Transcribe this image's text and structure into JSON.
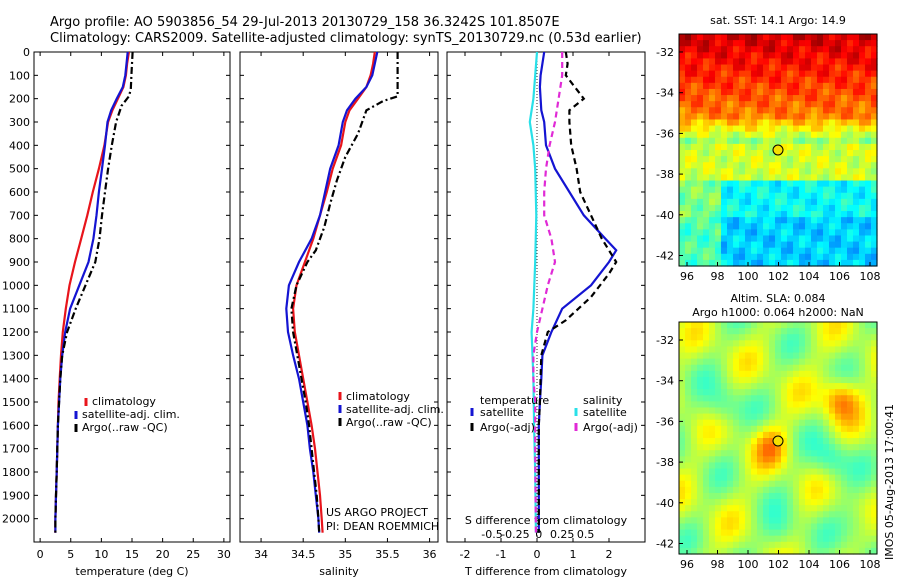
{
  "header": {
    "line1": "Argo profile: AO 5903856_54 29-Jul-2013 20130729_158 36.3242S 101.8507E",
    "line2": "Climatology: CARS2009. Satellite-adjusted climatology: synTS_20130729.nc (0.53d earlier)"
  },
  "side_text": "IMOS 05-Aug-2013 17:00:41",
  "colors": {
    "red": "#e8141b",
    "blue": "#1414d2",
    "black": "#000000",
    "cyan": "#29e0e8",
    "magenta": "#e02ad6",
    "marker": "#f5e000"
  },
  "chart_data": [
    {
      "type": "line",
      "panel": "temperature",
      "xlabel": "temperature (deg C)",
      "ylabel": "",
      "xlim": [
        -1,
        31
      ],
      "ylim": [
        0,
        2100
      ],
      "xticks": [
        0,
        5,
        10,
        15,
        20,
        25,
        30
      ],
      "yticks": [
        0,
        100,
        200,
        300,
        400,
        500,
        600,
        700,
        800,
        900,
        1000,
        1100,
        1200,
        1300,
        1400,
        1500,
        1600,
        1700,
        1800,
        1900,
        2000
      ],
      "series": [
        {
          "name": "climatology",
          "color": "red",
          "style": "solid",
          "points": [
            [
              14.5,
              0
            ],
            [
              14.2,
              50
            ],
            [
              14,
              100
            ],
            [
              13.6,
              150
            ],
            [
              12.7,
              200
            ],
            [
              11.8,
              250
            ],
            [
              11.1,
              300
            ],
            [
              10.5,
              400
            ],
            [
              9.6,
              500
            ],
            [
              8.6,
              600
            ],
            [
              7.7,
              700
            ],
            [
              6.7,
              800
            ],
            [
              5.7,
              900
            ],
            [
              4.8,
              1000
            ],
            [
              4.2,
              1100
            ],
            [
              3.7,
              1200
            ],
            [
              3.4,
              1300
            ],
            [
              3.2,
              1400
            ],
            [
              3.0,
              1500
            ],
            [
              2.9,
              1600
            ],
            [
              2.8,
              1700
            ],
            [
              2.7,
              1800
            ],
            [
              2.6,
              1900
            ],
            [
              2.5,
              2000
            ],
            [
              2.5,
              2060
            ]
          ]
        },
        {
          "name": "satellite-adj. clim.",
          "color": "blue",
          "style": "solid",
          "points": [
            [
              14.3,
              0
            ],
            [
              14.1,
              50
            ],
            [
              13.9,
              100
            ],
            [
              13.5,
              150
            ],
            [
              12.5,
              200
            ],
            [
              11.6,
              250
            ],
            [
              11,
              300
            ],
            [
              10.6,
              400
            ],
            [
              10.1,
              500
            ],
            [
              9.6,
              600
            ],
            [
              9.2,
              700
            ],
            [
              8.7,
              800
            ],
            [
              7.9,
              900
            ],
            [
              6.4,
              1000
            ],
            [
              4.9,
              1100
            ],
            [
              4.1,
              1200
            ],
            [
              3.6,
              1300
            ],
            [
              3.3,
              1400
            ],
            [
              3.1,
              1500
            ],
            [
              2.9,
              1600
            ],
            [
              2.8,
              1700
            ],
            [
              2.7,
              1800
            ],
            [
              2.6,
              1900
            ],
            [
              2.5,
              2000
            ],
            [
              2.5,
              2060
            ]
          ]
        },
        {
          "name": "Argo(..raw -QC)",
          "color": "black",
          "style": "dashdot",
          "points": [
            [
              15.1,
              0
            ],
            [
              15.0,
              50
            ],
            [
              14.9,
              100
            ],
            [
              14.8,
              160
            ],
            [
              14.5,
              190
            ],
            [
              13.3,
              230
            ],
            [
              12.4,
              300
            ],
            [
              11.7,
              400
            ],
            [
              11.1,
              500
            ],
            [
              10.6,
              600
            ],
            [
              10.1,
              700
            ],
            [
              9.7,
              800
            ],
            [
              9.0,
              900
            ],
            [
              7.4,
              1000
            ],
            [
              5.8,
              1100
            ],
            [
              4.4,
              1200
            ],
            [
              3.6,
              1300
            ],
            [
              3.3,
              1400
            ],
            [
              3.1,
              1500
            ],
            [
              2.9,
              1600
            ],
            [
              2.8,
              1700
            ],
            [
              2.7,
              1800
            ],
            [
              2.6,
              1900
            ],
            [
              2.5,
              2000
            ],
            [
              2.5,
              2060
            ]
          ]
        }
      ]
    },
    {
      "type": "line",
      "panel": "salinity",
      "xlabel": "salinity",
      "ylabel": "",
      "xlim": [
        33.75,
        36.1
      ],
      "ylim": [
        0,
        2100
      ],
      "xticks": [
        34,
        34.5,
        35,
        35.5,
        36
      ],
      "series": [
        {
          "name": "climatology",
          "color": "red",
          "style": "solid",
          "points": [
            [
              35.35,
              0
            ],
            [
              35.33,
              50
            ],
            [
              35.3,
              100
            ],
            [
              35.25,
              150
            ],
            [
              35.15,
              200
            ],
            [
              35.05,
              250
            ],
            [
              35.0,
              300
            ],
            [
              34.95,
              400
            ],
            [
              34.85,
              500
            ],
            [
              34.78,
              600
            ],
            [
              34.7,
              700
            ],
            [
              34.62,
              800
            ],
            [
              34.52,
              900
            ],
            [
              34.42,
              1000
            ],
            [
              34.38,
              1100
            ],
            [
              34.4,
              1200
            ],
            [
              34.45,
              1300
            ],
            [
              34.5,
              1400
            ],
            [
              34.55,
              1500
            ],
            [
              34.6,
              1600
            ],
            [
              34.64,
              1700
            ],
            [
              34.67,
              1800
            ],
            [
              34.7,
              1900
            ],
            [
              34.72,
              2000
            ],
            [
              34.73,
              2060
            ]
          ]
        },
        {
          "name": "satellite-adj. clim.",
          "color": "blue",
          "style": "solid",
          "points": [
            [
              35.38,
              0
            ],
            [
              35.35,
              50
            ],
            [
              35.32,
              100
            ],
            [
              35.25,
              150
            ],
            [
              35.12,
              200
            ],
            [
              35.02,
              250
            ],
            [
              34.97,
              300
            ],
            [
              34.92,
              400
            ],
            [
              34.82,
              500
            ],
            [
              34.76,
              600
            ],
            [
              34.7,
              700
            ],
            [
              34.6,
              800
            ],
            [
              34.45,
              900
            ],
            [
              34.33,
              1000
            ],
            [
              34.3,
              1100
            ],
            [
              34.32,
              1200
            ],
            [
              34.38,
              1300
            ],
            [
              34.45,
              1400
            ],
            [
              34.5,
              1500
            ],
            [
              34.55,
              1600
            ],
            [
              34.58,
              1700
            ],
            [
              34.62,
              1800
            ],
            [
              34.65,
              1900
            ],
            [
              34.68,
              2000
            ],
            [
              34.69,
              2060
            ]
          ]
        },
        {
          "name": "Argo(..raw -QC)",
          "color": "black",
          "style": "dashdot",
          "points": [
            [
              35.62,
              0
            ],
            [
              35.62,
              50
            ],
            [
              35.62,
              100
            ],
            [
              35.62,
              190
            ],
            [
              35.45,
              210
            ],
            [
              35.25,
              250
            ],
            [
              35.15,
              350
            ],
            [
              35.0,
              450
            ],
            [
              34.9,
              550
            ],
            [
              34.82,
              650
            ],
            [
              34.75,
              750
            ],
            [
              34.65,
              850
            ],
            [
              34.55,
              900
            ],
            [
              34.42,
              1000
            ],
            [
              34.36,
              1100
            ],
            [
              34.38,
              1200
            ],
            [
              34.43,
              1300
            ],
            [
              34.48,
              1400
            ],
            [
              34.53,
              1500
            ],
            [
              34.57,
              1600
            ],
            [
              34.6,
              1700
            ],
            [
              34.63,
              1800
            ],
            [
              34.66,
              1900
            ],
            [
              34.68,
              2000
            ],
            [
              34.69,
              2060
            ]
          ]
        }
      ]
    },
    {
      "type": "line",
      "panel": "difference",
      "xlabel": "T difference from climatology",
      "top_axis_label": "S difference from climatology",
      "xlim": [
        -2.5,
        3.0
      ],
      "ylim": [
        0,
        2100
      ],
      "xticks": [
        -2,
        -1,
        0,
        1,
        2
      ],
      "top_ticks": [
        "-0.5",
        "-0.25",
        "0",
        "0.25",
        "0.5"
      ],
      "legend_title_temperature": "temperature",
      "legend_title_salinity": "salinity",
      "series": [
        {
          "name": "satellite",
          "group": "temperature",
          "color": "blue",
          "style": "solid",
          "points": [
            [
              0.2,
              0
            ],
            [
              0.15,
              50
            ],
            [
              0.1,
              100
            ],
            [
              0.08,
              150
            ],
            [
              0.1,
              200
            ],
            [
              0.12,
              250
            ],
            [
              0.2,
              300
            ],
            [
              0.25,
              400
            ],
            [
              0.5,
              500
            ],
            [
              0.9,
              600
            ],
            [
              1.3,
              700
            ],
            [
              1.9,
              800
            ],
            [
              2.2,
              850
            ],
            [
              2.0,
              900
            ],
            [
              1.5,
              1000
            ],
            [
              0.7,
              1100
            ],
            [
              0.4,
              1200
            ],
            [
              0.15,
              1300
            ],
            [
              0.12,
              1400
            ],
            [
              0.08,
              1500
            ],
            [
              0.05,
              1600
            ],
            [
              0.05,
              1800
            ],
            [
              0.05,
              2060
            ]
          ]
        },
        {
          "name": "Argo(-adj)",
          "group": "temperature",
          "color": "black",
          "style": "dashed",
          "points": [
            [
              0.8,
              0
            ],
            [
              0.85,
              50
            ],
            [
              0.8,
              100
            ],
            [
              1.3,
              200
            ],
            [
              0.9,
              250
            ],
            [
              0.9,
              300
            ],
            [
              0.95,
              400
            ],
            [
              1.1,
              500
            ],
            [
              1.2,
              600
            ],
            [
              1.5,
              700
            ],
            [
              1.8,
              800
            ],
            [
              2.2,
              900
            ],
            [
              2.0,
              950
            ],
            [
              1.5,
              1050
            ],
            [
              0.8,
              1150
            ],
            [
              0.3,
              1200
            ],
            [
              0.12,
              1300
            ],
            [
              0.1,
              1400
            ],
            [
              0.08,
              1500
            ],
            [
              0.05,
              1600
            ],
            [
              0.05,
              1800
            ],
            [
              0.05,
              2060
            ]
          ]
        },
        {
          "name": "satellite",
          "group": "salinity",
          "color": "cyan",
          "style": "solid",
          "points": [
            [
              0.0,
              0
            ],
            [
              -0.05,
              100
            ],
            [
              -0.1,
              200
            ],
            [
              -0.2,
              300
            ],
            [
              -0.1,
              400
            ],
            [
              -0.05,
              500
            ],
            [
              -0.02,
              700
            ],
            [
              -0.05,
              900
            ],
            [
              -0.1,
              1100
            ],
            [
              -0.15,
              1200
            ],
            [
              -0.1,
              1400
            ],
            [
              -0.08,
              1600
            ],
            [
              -0.05,
              1800
            ],
            [
              -0.03,
              2060
            ]
          ]
        },
        {
          "name": "Argo(-adj)",
          "group": "salinity",
          "color": "magenta",
          "style": "dashed",
          "points": [
            [
              0.7,
              0
            ],
            [
              0.7,
              100
            ],
            [
              0.6,
              200
            ],
            [
              0.5,
              300
            ],
            [
              0.35,
              400
            ],
            [
              0.25,
              500
            ],
            [
              0.2,
              600
            ],
            [
              0.2,
              700
            ],
            [
              0.4,
              800
            ],
            [
              0.5,
              900
            ],
            [
              0.3,
              1000
            ],
            [
              0.15,
              1100
            ],
            [
              0.0,
              1200
            ],
            [
              -0.1,
              1300
            ],
            [
              -0.1,
              1400
            ],
            [
              -0.05,
              1500
            ],
            [
              -0.05,
              1700
            ],
            [
              -0.03,
              2060
            ]
          ]
        }
      ]
    }
  ],
  "legend_left": [
    "climatology",
    "satellite-adj. clim.",
    "Argo(..raw -QC)"
  ],
  "legend_mid": [
    "climatology",
    "satellite-adj. clim.",
    "Argo(..raw -QC)"
  ],
  "legend_right": {
    "temperature": "temperature",
    "salinity": "salinity",
    "sat": "satellite",
    "argo": "Argo(-adj)"
  },
  "project": {
    "line1": "US ARGO PROJECT",
    "line2": "PI: DEAN ROEMMICH"
  },
  "map_top": {
    "title": "sat. SST: 14.1  Argo: 14.9",
    "xticks": [
      "96",
      "98",
      "100",
      "102",
      "104",
      "106",
      "108"
    ],
    "yticks": [
      "-32",
      "-34",
      "-36",
      "-38",
      "-40",
      "-42"
    ]
  },
  "map_bottom": {
    "title1": "Altim. SLA: 0.084",
    "title2": "Argo h1000: 0.064  h2000: NaN",
    "xticks": [
      "96",
      "98",
      "100",
      "102",
      "104",
      "106",
      "108"
    ],
    "yticks": [
      "-32",
      "-34",
      "-36",
      "-38",
      "-40",
      "-42"
    ]
  }
}
